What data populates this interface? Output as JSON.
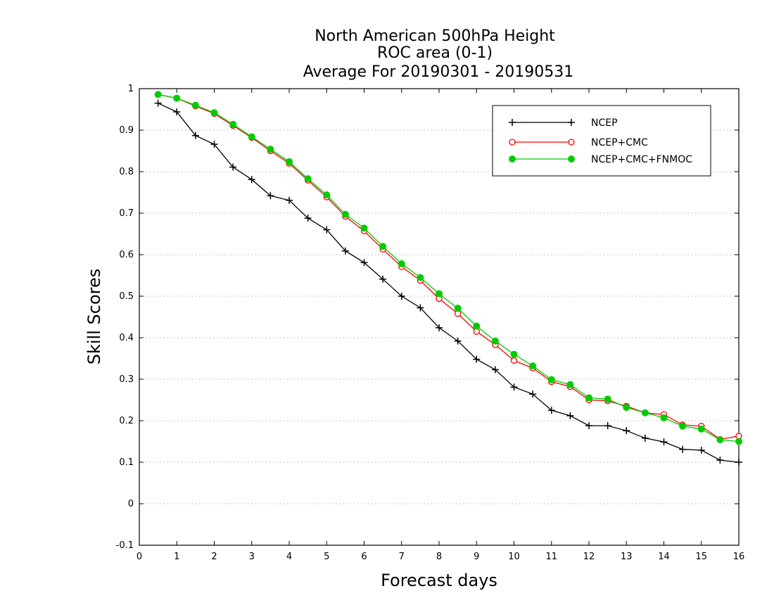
{
  "chart_data": {
    "type": "line",
    "title": [
      "North American 500hPa Height",
      "ROC area (0-1)",
      "Average For 20190301 - 20190531"
    ],
    "xlabel": "Forecast days",
    "ylabel": "Skill Scores",
    "xlim": [
      0,
      16
    ],
    "ylim": [
      -0.1,
      1
    ],
    "xticks": [
      0,
      1,
      2,
      3,
      4,
      5,
      6,
      7,
      8,
      9,
      10,
      11,
      12,
      13,
      14,
      15,
      16
    ],
    "yticks": [
      -0.1,
      0,
      0.1,
      0.2,
      0.3,
      0.4,
      0.5,
      0.6,
      0.7,
      0.8,
      0.9,
      1
    ],
    "ytick_labels": [
      "-0.1",
      "0",
      "0.1",
      "0.2",
      "0.3",
      "0.4",
      "0.5",
      "0.6",
      "0.7",
      "0.8",
      "0.9",
      "1"
    ],
    "grid": "horizontal dotted",
    "legend_position": "top-right",
    "x": [
      0.5,
      1,
      1.5,
      2,
      2.5,
      3,
      3.5,
      4,
      4.5,
      5,
      5.5,
      6,
      6.5,
      7,
      7.5,
      8,
      8.5,
      9,
      9.5,
      10,
      10.5,
      11,
      11.5,
      12,
      12.5,
      13,
      13.5,
      14,
      14.5,
      15,
      15.5,
      16
    ],
    "series": [
      {
        "name": "NCEP",
        "color": "#000000",
        "marker": "plus",
        "values": [
          0.965,
          0.944,
          0.887,
          0.866,
          0.811,
          0.781,
          0.742,
          0.731,
          0.688,
          0.66,
          0.609,
          0.581,
          0.541,
          0.5,
          0.472,
          0.424,
          0.392,
          0.348,
          0.323,
          0.281,
          0.264,
          0.225,
          0.212,
          0.188,
          0.188,
          0.176,
          0.158,
          0.149,
          0.131,
          0.129,
          0.105,
          0.1
        ]
      },
      {
        "name": "NCEP+CMC",
        "color": "#ff0000",
        "marker": "open-circle",
        "values": [
          0.986,
          0.977,
          0.958,
          0.94,
          0.911,
          0.882,
          0.85,
          0.82,
          0.779,
          0.739,
          0.692,
          0.657,
          0.613,
          0.571,
          0.538,
          0.494,
          0.458,
          0.415,
          0.383,
          0.345,
          0.327,
          0.294,
          0.282,
          0.25,
          0.248,
          0.235,
          0.219,
          0.215,
          0.19,
          0.187,
          0.155,
          0.163
        ]
      },
      {
        "name": "NCEP+CMC+FNMOC",
        "color": "#00cc00",
        "marker": "filled-circle",
        "values": [
          0.986,
          0.977,
          0.96,
          0.942,
          0.914,
          0.884,
          0.854,
          0.824,
          0.783,
          0.744,
          0.697,
          0.664,
          0.62,
          0.578,
          0.545,
          0.506,
          0.471,
          0.428,
          0.392,
          0.36,
          0.332,
          0.299,
          0.287,
          0.255,
          0.252,
          0.232,
          0.219,
          0.207,
          0.187,
          0.18,
          0.154,
          0.15
        ]
      }
    ]
  }
}
